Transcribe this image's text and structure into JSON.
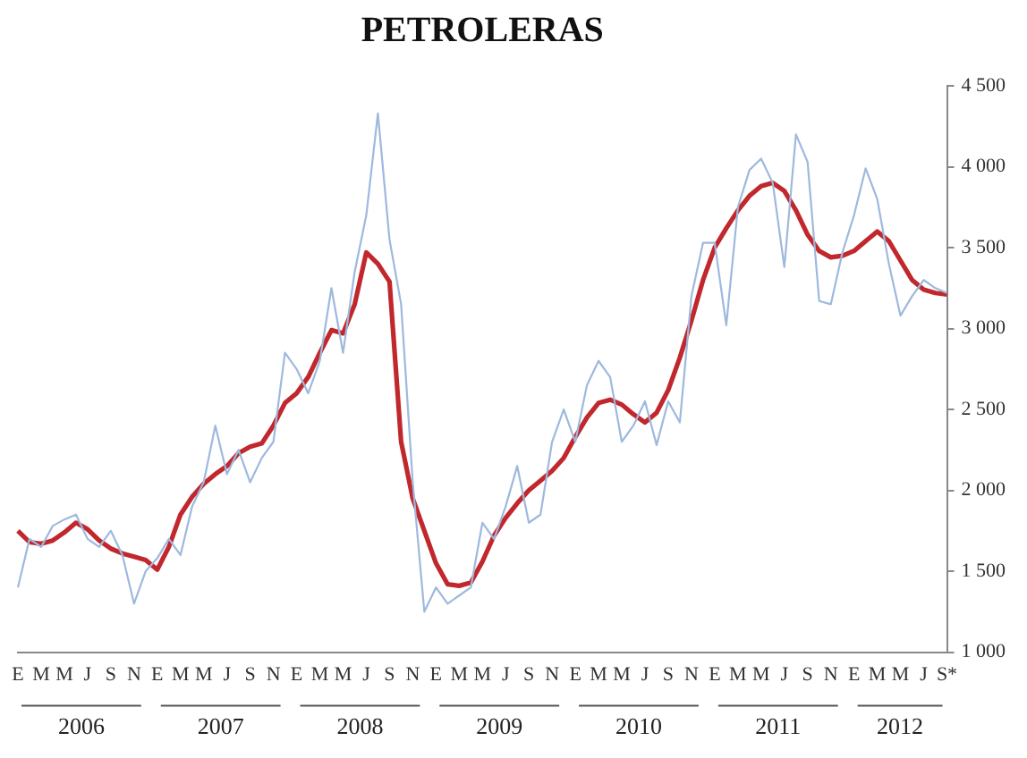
{
  "chart_data": {
    "type": "line",
    "title": "PETROLERAS",
    "categories": [
      "E",
      null,
      "M",
      null,
      "M",
      null,
      "J",
      null,
      "S",
      null,
      "N",
      null,
      "E",
      null,
      "M",
      null,
      "M",
      null,
      "J",
      null,
      "S",
      null,
      "N",
      null,
      "E",
      null,
      "M",
      null,
      "M",
      null,
      "J",
      null,
      "S",
      null,
      "N",
      null,
      "E",
      null,
      "M",
      null,
      "M",
      null,
      "J",
      null,
      "S",
      null,
      "N",
      null,
      "E",
      null,
      "M",
      null,
      "M",
      null,
      "J",
      null,
      "S",
      null,
      "N",
      null,
      "E",
      null,
      "M",
      null,
      "M",
      null,
      "J",
      null,
      "S",
      null,
      "N",
      null,
      "E",
      null,
      "M",
      null,
      "M",
      null,
      "J",
      null,
      "S*"
    ],
    "series": [
      {
        "color": "#9db9de",
        "values": [
          1400,
          1700,
          1650,
          1780,
          1820,
          1850,
          1700,
          1650,
          1750,
          1600,
          1300,
          1500,
          1580,
          1700,
          1600,
          1900,
          2050,
          2400,
          2100,
          2250,
          2050,
          2200,
          2300,
          2850,
          2750,
          2600,
          2800,
          3250,
          2850,
          3350,
          3700,
          4330,
          3550,
          3150,
          2050,
          1250,
          1400,
          1300,
          1350,
          1400,
          1800,
          1700,
          1900,
          2150,
          1800,
          1850,
          2300,
          2500,
          2300,
          2650,
          2800,
          2700,
          2300,
          2400,
          2550,
          2280,
          2550,
          2420,
          3200,
          3530,
          3530,
          3020,
          3750,
          3980,
          4050,
          3900,
          3380,
          4200,
          4030,
          3170,
          3150,
          3470,
          3700,
          3990,
          3800,
          3400,
          3080,
          3200,
          3300,
          3250,
          3220
        ]
      },
      {
        "color": "#c0282d",
        "values": [
          1750,
          1680,
          1670,
          1690,
          1740,
          1800,
          1760,
          1690,
          1640,
          1610,
          1590,
          1570,
          1510,
          1650,
          1850,
          1960,
          2040,
          2100,
          2150,
          2230,
          2270,
          2290,
          2400,
          2540,
          2600,
          2700,
          2850,
          2990,
          2970,
          3150,
          3470,
          3400,
          3290,
          2300,
          1950,
          1750,
          1550,
          1420,
          1410,
          1430,
          1560,
          1720,
          1830,
          1920,
          2000,
          2060,
          2120,
          2200,
          2330,
          2450,
          2540,
          2560,
          2530,
          2470,
          2420,
          2480,
          2620,
          2820,
          3050,
          3300,
          3500,
          3620,
          3730,
          3820,
          3880,
          3900,
          3850,
          3730,
          3580,
          3480,
          3440,
          3450,
          3480,
          3540,
          3600,
          3540,
          3420,
          3300,
          3240,
          3220,
          3210
        ]
      }
    ],
    "ylim": [
      1000,
      4500
    ],
    "yticks": [
      {
        "value": 1000,
        "label": "1 000"
      },
      {
        "value": 1500,
        "label": "1 500"
      },
      {
        "value": 2000,
        "label": "2 000"
      },
      {
        "value": 2500,
        "label": "2 500"
      },
      {
        "value": 3000,
        "label": "3 000"
      },
      {
        "value": 3500,
        "label": "3 500"
      },
      {
        "value": 4000,
        "label": "4 000"
      },
      {
        "value": 4500,
        "label": "4 500"
      }
    ],
    "annotations": [
      "2006",
      "2007",
      "2008",
      "2009",
      "2010",
      "2011",
      "2012"
    ],
    "grid": false,
    "legend": false,
    "marker": "none",
    "line_style": "solid"
  }
}
